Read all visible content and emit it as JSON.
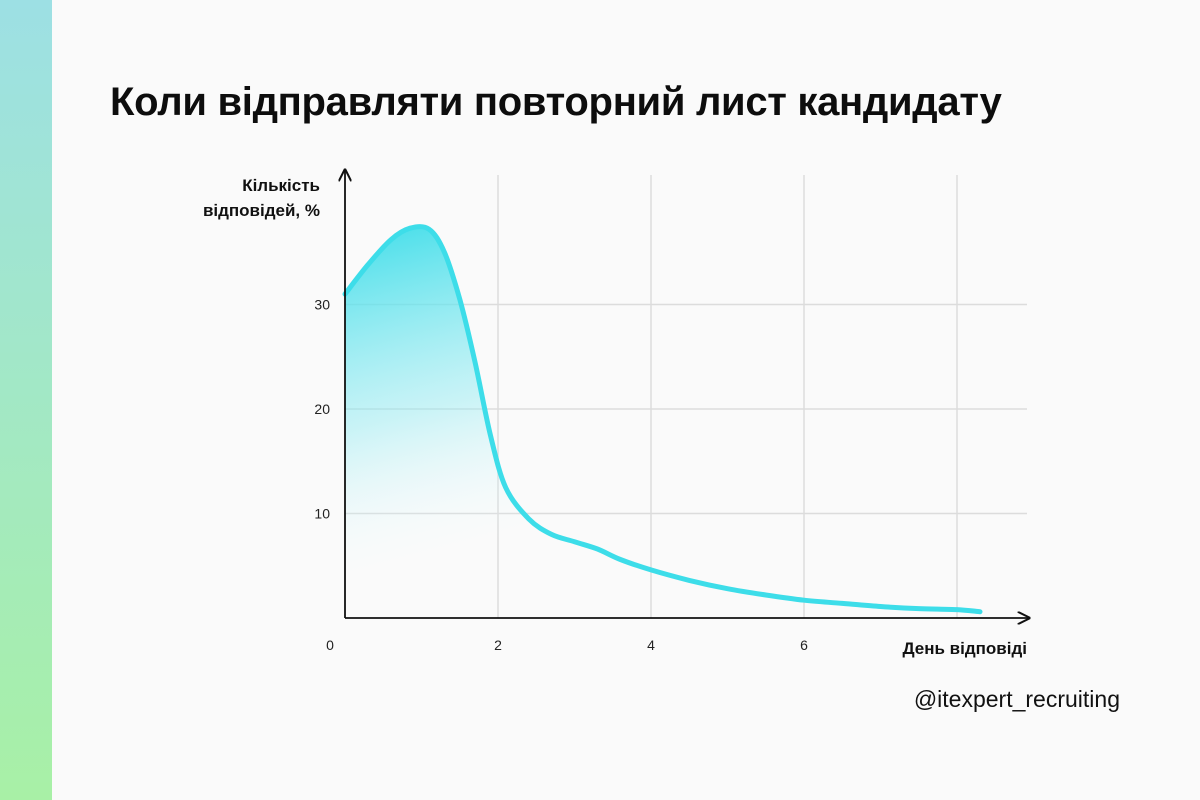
{
  "title": "Коли відправляти повторний лист кандидату",
  "handle": "@itexpert_recruiting",
  "colors": {
    "curve": "#3ddde9",
    "band_top": "#9de0e4",
    "band_bottom": "#a8f0a6",
    "grid": "#dcdcdc",
    "axis": "#111111"
  },
  "chart_data": {
    "type": "area",
    "ylabel_lines": [
      "Кількість",
      "відповідей, %"
    ],
    "xlabel": "День відповіді",
    "xlim": [
      0,
      8.9
    ],
    "ylim": [
      0,
      42
    ],
    "x_ticks": [
      0,
      2,
      4,
      6
    ],
    "y_ticks": [
      10,
      20,
      30
    ],
    "x_grid": [
      2,
      4,
      6,
      8
    ],
    "y_grid": [
      10,
      20,
      30
    ],
    "grid": true,
    "series": [
      {
        "x": [
          0,
          0.3,
          0.6,
          0.85,
          1.1,
          1.3,
          1.5,
          1.7,
          1.9,
          2.1,
          2.4,
          2.7,
          3.0,
          3.3,
          3.6,
          4.0,
          4.5,
          5.0,
          5.5,
          6.0,
          6.5,
          7.0,
          7.5,
          8.0,
          8.3
        ],
        "y": [
          31,
          33.8,
          36.2,
          37.3,
          37.2,
          35,
          30.5,
          24.5,
          17.5,
          12.5,
          9.5,
          8,
          7.3,
          6.6,
          5.6,
          4.6,
          3.6,
          2.8,
          2.2,
          1.7,
          1.4,
          1.1,
          0.9,
          0.8,
          0.6
        ]
      }
    ]
  }
}
